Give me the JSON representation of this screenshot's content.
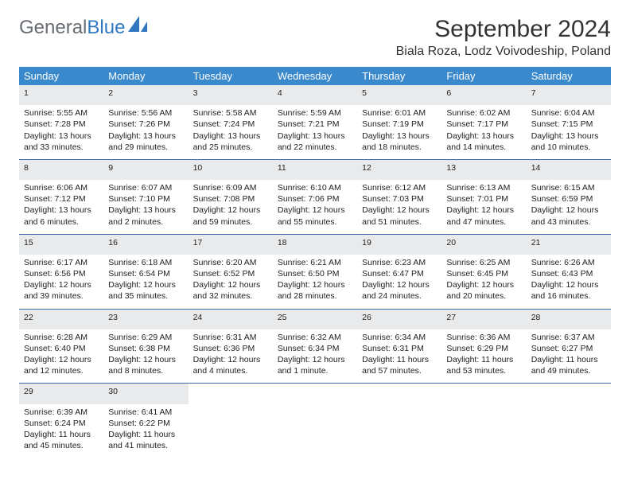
{
  "logo": {
    "word1": "General",
    "word2": "Blue"
  },
  "title": "September 2024",
  "location": "Biala Roza, Lodz Voivodeship, Poland",
  "colors": {
    "header_bg": "#3a89cc",
    "header_text": "#ffffff",
    "daynum_bg": "#e9eaeb",
    "daynum_text": "#5a5e63",
    "row_border": "#3a6ea5",
    "logo_gray": "#666c72",
    "logo_blue": "#2f78c0"
  },
  "daysOfWeek": [
    "Sunday",
    "Monday",
    "Tuesday",
    "Wednesday",
    "Thursday",
    "Friday",
    "Saturday"
  ],
  "weeks": [
    [
      {
        "n": "1",
        "sr": "5:55 AM",
        "ss": "7:28 PM",
        "dl": "13 hours and 33 minutes."
      },
      {
        "n": "2",
        "sr": "5:56 AM",
        "ss": "7:26 PM",
        "dl": "13 hours and 29 minutes."
      },
      {
        "n": "3",
        "sr": "5:58 AM",
        "ss": "7:24 PM",
        "dl": "13 hours and 25 minutes."
      },
      {
        "n": "4",
        "sr": "5:59 AM",
        "ss": "7:21 PM",
        "dl": "13 hours and 22 minutes."
      },
      {
        "n": "5",
        "sr": "6:01 AM",
        "ss": "7:19 PM",
        "dl": "13 hours and 18 minutes."
      },
      {
        "n": "6",
        "sr": "6:02 AM",
        "ss": "7:17 PM",
        "dl": "13 hours and 14 minutes."
      },
      {
        "n": "7",
        "sr": "6:04 AM",
        "ss": "7:15 PM",
        "dl": "13 hours and 10 minutes."
      }
    ],
    [
      {
        "n": "8",
        "sr": "6:06 AM",
        "ss": "7:12 PM",
        "dl": "13 hours and 6 minutes."
      },
      {
        "n": "9",
        "sr": "6:07 AM",
        "ss": "7:10 PM",
        "dl": "13 hours and 2 minutes."
      },
      {
        "n": "10",
        "sr": "6:09 AM",
        "ss": "7:08 PM",
        "dl": "12 hours and 59 minutes."
      },
      {
        "n": "11",
        "sr": "6:10 AM",
        "ss": "7:06 PM",
        "dl": "12 hours and 55 minutes."
      },
      {
        "n": "12",
        "sr": "6:12 AM",
        "ss": "7:03 PM",
        "dl": "12 hours and 51 minutes."
      },
      {
        "n": "13",
        "sr": "6:13 AM",
        "ss": "7:01 PM",
        "dl": "12 hours and 47 minutes."
      },
      {
        "n": "14",
        "sr": "6:15 AM",
        "ss": "6:59 PM",
        "dl": "12 hours and 43 minutes."
      }
    ],
    [
      {
        "n": "15",
        "sr": "6:17 AM",
        "ss": "6:56 PM",
        "dl": "12 hours and 39 minutes."
      },
      {
        "n": "16",
        "sr": "6:18 AM",
        "ss": "6:54 PM",
        "dl": "12 hours and 35 minutes."
      },
      {
        "n": "17",
        "sr": "6:20 AM",
        "ss": "6:52 PM",
        "dl": "12 hours and 32 minutes."
      },
      {
        "n": "18",
        "sr": "6:21 AM",
        "ss": "6:50 PM",
        "dl": "12 hours and 28 minutes."
      },
      {
        "n": "19",
        "sr": "6:23 AM",
        "ss": "6:47 PM",
        "dl": "12 hours and 24 minutes."
      },
      {
        "n": "20",
        "sr": "6:25 AM",
        "ss": "6:45 PM",
        "dl": "12 hours and 20 minutes."
      },
      {
        "n": "21",
        "sr": "6:26 AM",
        "ss": "6:43 PM",
        "dl": "12 hours and 16 minutes."
      }
    ],
    [
      {
        "n": "22",
        "sr": "6:28 AM",
        "ss": "6:40 PM",
        "dl": "12 hours and 12 minutes."
      },
      {
        "n": "23",
        "sr": "6:29 AM",
        "ss": "6:38 PM",
        "dl": "12 hours and 8 minutes."
      },
      {
        "n": "24",
        "sr": "6:31 AM",
        "ss": "6:36 PM",
        "dl": "12 hours and 4 minutes."
      },
      {
        "n": "25",
        "sr": "6:32 AM",
        "ss": "6:34 PM",
        "dl": "12 hours and 1 minute."
      },
      {
        "n": "26",
        "sr": "6:34 AM",
        "ss": "6:31 PM",
        "dl": "11 hours and 57 minutes."
      },
      {
        "n": "27",
        "sr": "6:36 AM",
        "ss": "6:29 PM",
        "dl": "11 hours and 53 minutes."
      },
      {
        "n": "28",
        "sr": "6:37 AM",
        "ss": "6:27 PM",
        "dl": "11 hours and 49 minutes."
      }
    ],
    [
      {
        "n": "29",
        "sr": "6:39 AM",
        "ss": "6:24 PM",
        "dl": "11 hours and 45 minutes."
      },
      {
        "n": "30",
        "sr": "6:41 AM",
        "ss": "6:22 PM",
        "dl": "11 hours and 41 minutes."
      },
      null,
      null,
      null,
      null,
      null
    ]
  ],
  "labels": {
    "sunrise_prefix": "Sunrise: ",
    "sunset_prefix": "Sunset: ",
    "daylight_prefix": "Daylight: "
  }
}
